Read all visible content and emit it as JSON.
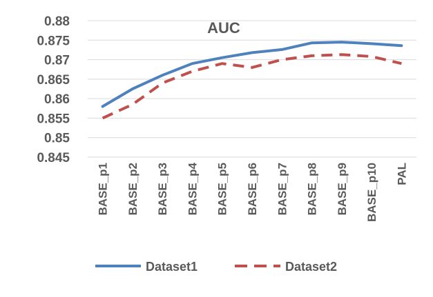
{
  "chart_data": {
    "type": "line",
    "title": "AUC",
    "categories": [
      "BASE_p1",
      "BASE_p2",
      "BASE_p3",
      "BASE_p4",
      "BASE_p5",
      "BASE_p6",
      "BASE_p7",
      "BASE_p8",
      "BASE_p9",
      "BASE_p10",
      "PAL"
    ],
    "series": [
      {
        "name": "Dataset1",
        "color": "#4f81bd",
        "style": "solid",
        "values": [
          0.858,
          0.8625,
          0.866,
          0.869,
          0.8705,
          0.8718,
          0.8726,
          0.8743,
          0.8745,
          0.8741,
          0.8736
        ]
      },
      {
        "name": "Dataset2",
        "color": "#c0504d",
        "style": "dashed",
        "values": [
          0.855,
          0.8585,
          0.864,
          0.867,
          0.869,
          0.868,
          0.87,
          0.871,
          0.8713,
          0.8708,
          0.869
        ]
      }
    ],
    "ylim": [
      0.845,
      0.88
    ],
    "yticks": [
      "0.88",
      "0.875",
      "0.87",
      "0.865",
      "0.86",
      "0.855",
      "0.85",
      "0.845"
    ],
    "xlabel": "",
    "ylabel": "",
    "grid": "horizontal",
    "legend": "bottom"
  }
}
